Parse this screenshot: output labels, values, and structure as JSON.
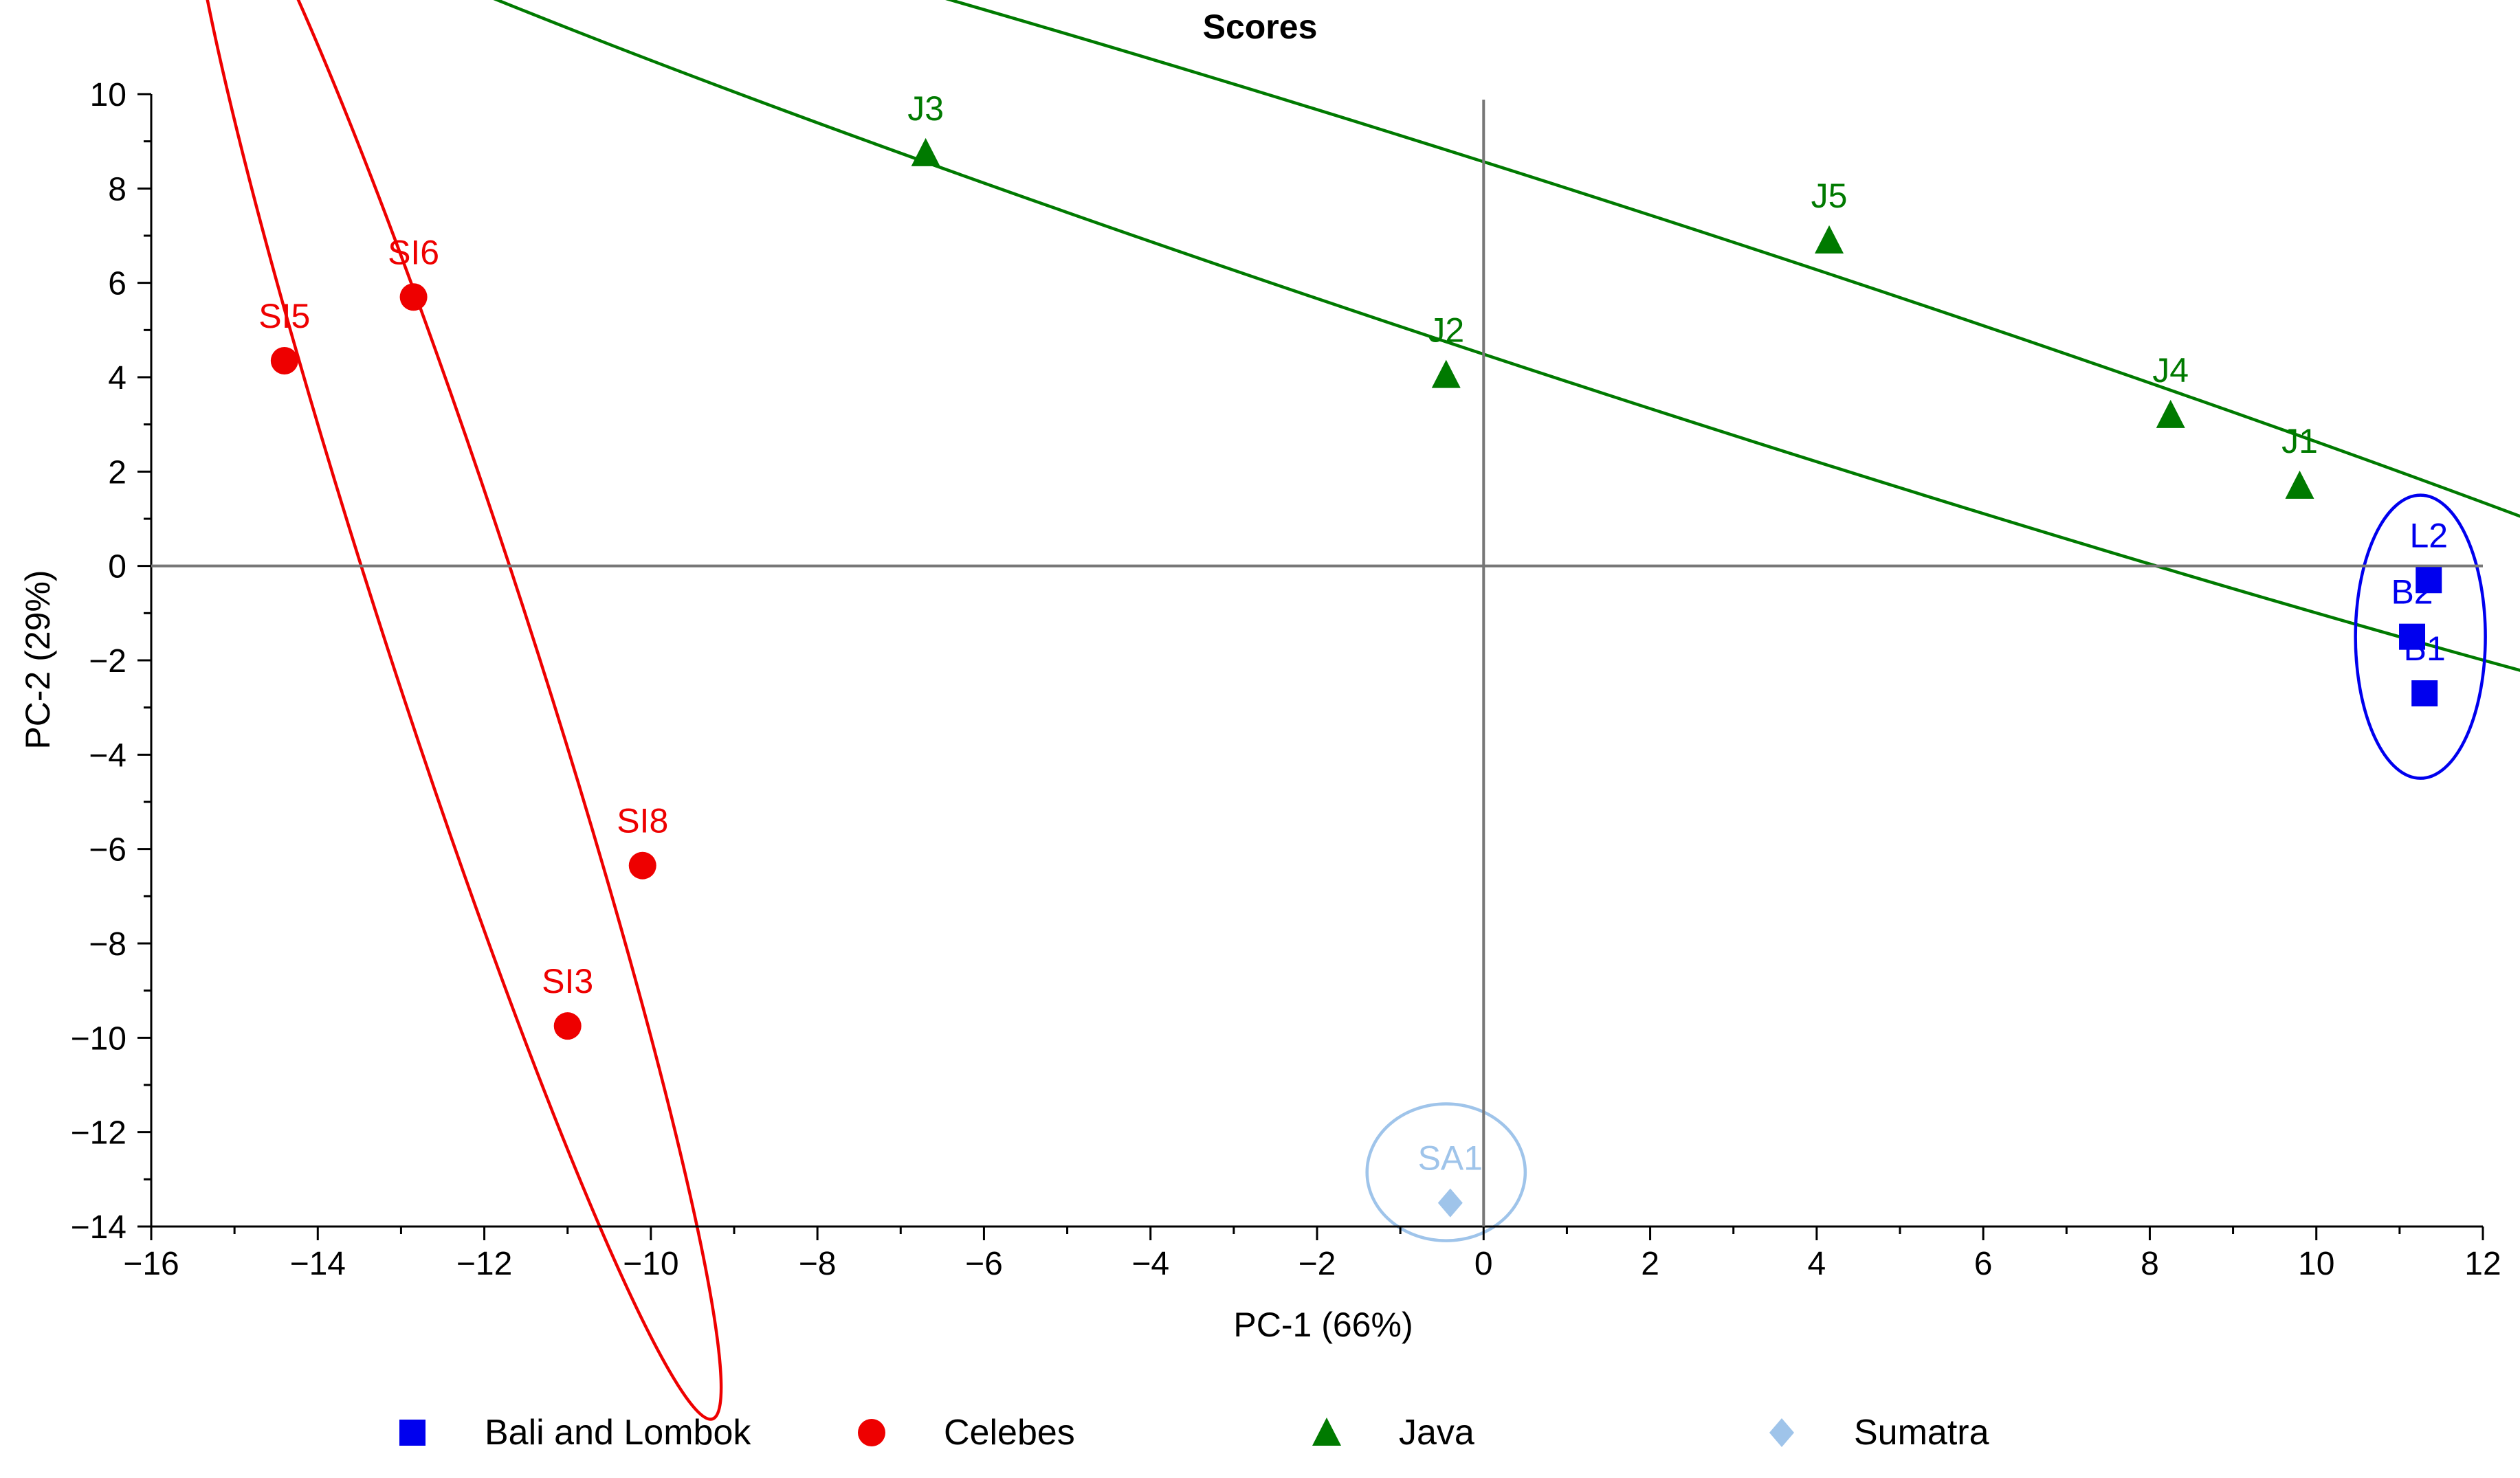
{
  "chart_data": {
    "type": "scatter",
    "title": "Scores",
    "xlabel": "PC-1 (66%)",
    "ylabel": "PC-2 (29%)",
    "xlim": [
      -16,
      12
    ],
    "ylim": [
      -14,
      10
    ],
    "xticks": [
      -16,
      -14,
      -12,
      -10,
      -8,
      -6,
      -4,
      -2,
      0,
      2,
      4,
      6,
      8,
      10,
      12
    ],
    "yticks": [
      -14,
      -12,
      -10,
      -8,
      -6,
      -4,
      -2,
      0,
      2,
      4,
      6,
      8,
      10
    ],
    "xtick_labels": [
      "−16",
      "−14",
      "−12",
      "−10",
      "−8",
      "−6",
      "−4",
      "−2",
      "0",
      "2",
      "4",
      "6",
      "8",
      "10",
      "12"
    ],
    "ytick_labels": [
      "−14",
      "−12",
      "−10",
      "−8",
      "−6",
      "−4",
      "−2",
      "0",
      "2",
      "4",
      "6",
      "8",
      "10"
    ],
    "grid": false,
    "zero_lines": true,
    "legend_position": "bottom",
    "series": [
      {
        "name": "Bali and Lombok",
        "marker": "square",
        "color": "#0000ee",
        "points": [
          {
            "label": "L2",
            "x": 11.35,
            "y": -0.3
          },
          {
            "label": "B2",
            "x": 11.15,
            "y": -1.5
          },
          {
            "label": "B1",
            "x": 11.3,
            "y": -2.7
          }
        ]
      },
      {
        "name": "Celebes",
        "marker": "circle",
        "color": "#ee0000",
        "points": [
          {
            "label": "SI5",
            "x": -14.4,
            "y": 4.35
          },
          {
            "label": "SI6",
            "x": -12.85,
            "y": 5.7
          },
          {
            "label": "SI8",
            "x": -10.1,
            "y": -6.35
          },
          {
            "label": "SI3",
            "x": -11.0,
            "y": -9.75
          }
        ]
      },
      {
        "name": "Java",
        "marker": "triangle",
        "color": "#007a00",
        "points": [
          {
            "label": "J3",
            "x": -6.7,
            "y": 8.75
          },
          {
            "label": "J5",
            "x": 4.15,
            "y": 6.9
          },
          {
            "label": "J2",
            "x": -0.45,
            "y": 4.05
          },
          {
            "label": "J4",
            "x": 8.25,
            "y": 3.2
          },
          {
            "label": "J1",
            "x": 9.8,
            "y": 1.7
          }
        ]
      },
      {
        "name": "Sumatra",
        "marker": "diamond",
        "color": "#9fc4ea",
        "points": [
          {
            "label": "SA1",
            "x": -0.4,
            "y": -13.5
          }
        ]
      }
    ],
    "ellipses": [
      {
        "group": "Celebes",
        "color": "#ee0000",
        "cx": -12.35,
        "cy": -1.3,
        "rx": 10.0,
        "ry": 1.5,
        "angle_deg": -72
      },
      {
        "group": "Java",
        "color": "#007a00",
        "cx": 1.8,
        "cy": 5.5,
        "rx": 18.5,
        "ry": 1.95,
        "angle_deg": -18
      },
      {
        "group": "Bali and Lombok",
        "color": "#0000ee",
        "cx": 11.25,
        "cy": -1.5,
        "rx": 0.78,
        "ry": 3.0,
        "angle_deg": 0
      },
      {
        "group": "Sumatra",
        "color": "#9fc4ea",
        "cx": -0.45,
        "cy": -12.85,
        "rx": 0.95,
        "ry": 1.45,
        "angle_deg": 0
      }
    ]
  }
}
